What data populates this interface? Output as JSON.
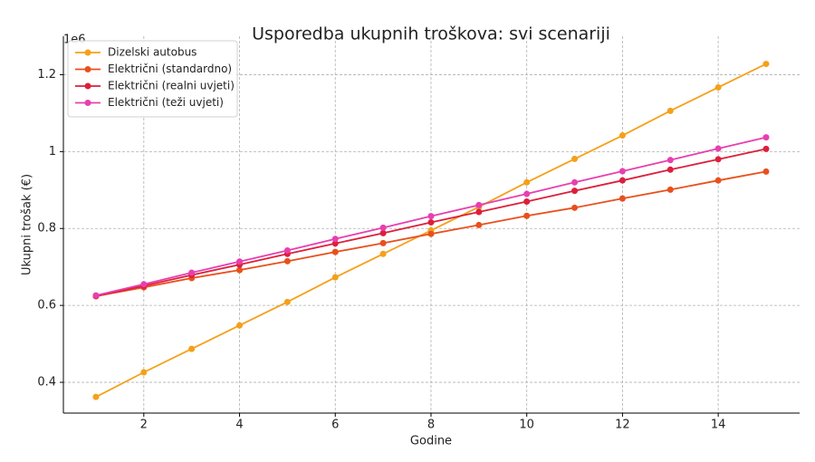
{
  "chart_data": {
    "type": "line",
    "title": "Usporedba ukupnih troškova: svi scenariji",
    "x_label": "Godine",
    "y_label": "Ukupni trošak (€)",
    "y_offset_label": "1e6",
    "x": [
      1,
      2,
      3,
      4,
      5,
      6,
      7,
      8,
      9,
      10,
      11,
      12,
      13,
      14,
      15
    ],
    "series": [
      {
        "name": "Dizelski autobus",
        "color": "#f5a01a",
        "values": [
          0.362,
          0.426,
          0.487,
          0.548,
          0.609,
          0.673,
          0.734,
          0.795,
          0.856,
          0.92,
          0.981,
          1.042,
          1.106,
          1.167,
          1.228
        ]
      },
      {
        "name": "Električni (standardno)",
        "color": "#e8501c",
        "values": [
          0.624,
          0.647,
          0.671,
          0.692,
          0.715,
          0.739,
          0.762,
          0.786,
          0.809,
          0.833,
          0.854,
          0.878,
          0.901,
          0.925,
          0.948
        ]
      },
      {
        "name": "Električni (realni uvjeti)",
        "color": "#dc1f3c",
        "values": [
          0.624,
          0.651,
          0.679,
          0.706,
          0.734,
          0.761,
          0.788,
          0.816,
          0.843,
          0.87,
          0.898,
          0.925,
          0.953,
          0.98,
          1.007
        ]
      },
      {
        "name": "Električni (teži uvjeti)",
        "color": "#e83fb0",
        "values": [
          0.626,
          0.655,
          0.685,
          0.714,
          0.743,
          0.773,
          0.802,
          0.832,
          0.861,
          0.89,
          0.92,
          0.949,
          0.978,
          1.008,
          1.037
        ]
      }
    ],
    "xlim": [
      0.32,
      15.7
    ],
    "ylim": [
      0.32,
      1.3
    ],
    "xticks": [
      2,
      4,
      6,
      8,
      10,
      12,
      14
    ],
    "yticks": [
      0.4,
      0.6,
      0.8,
      1.0,
      1.2
    ],
    "grid": true,
    "legend": "upper-left"
  }
}
